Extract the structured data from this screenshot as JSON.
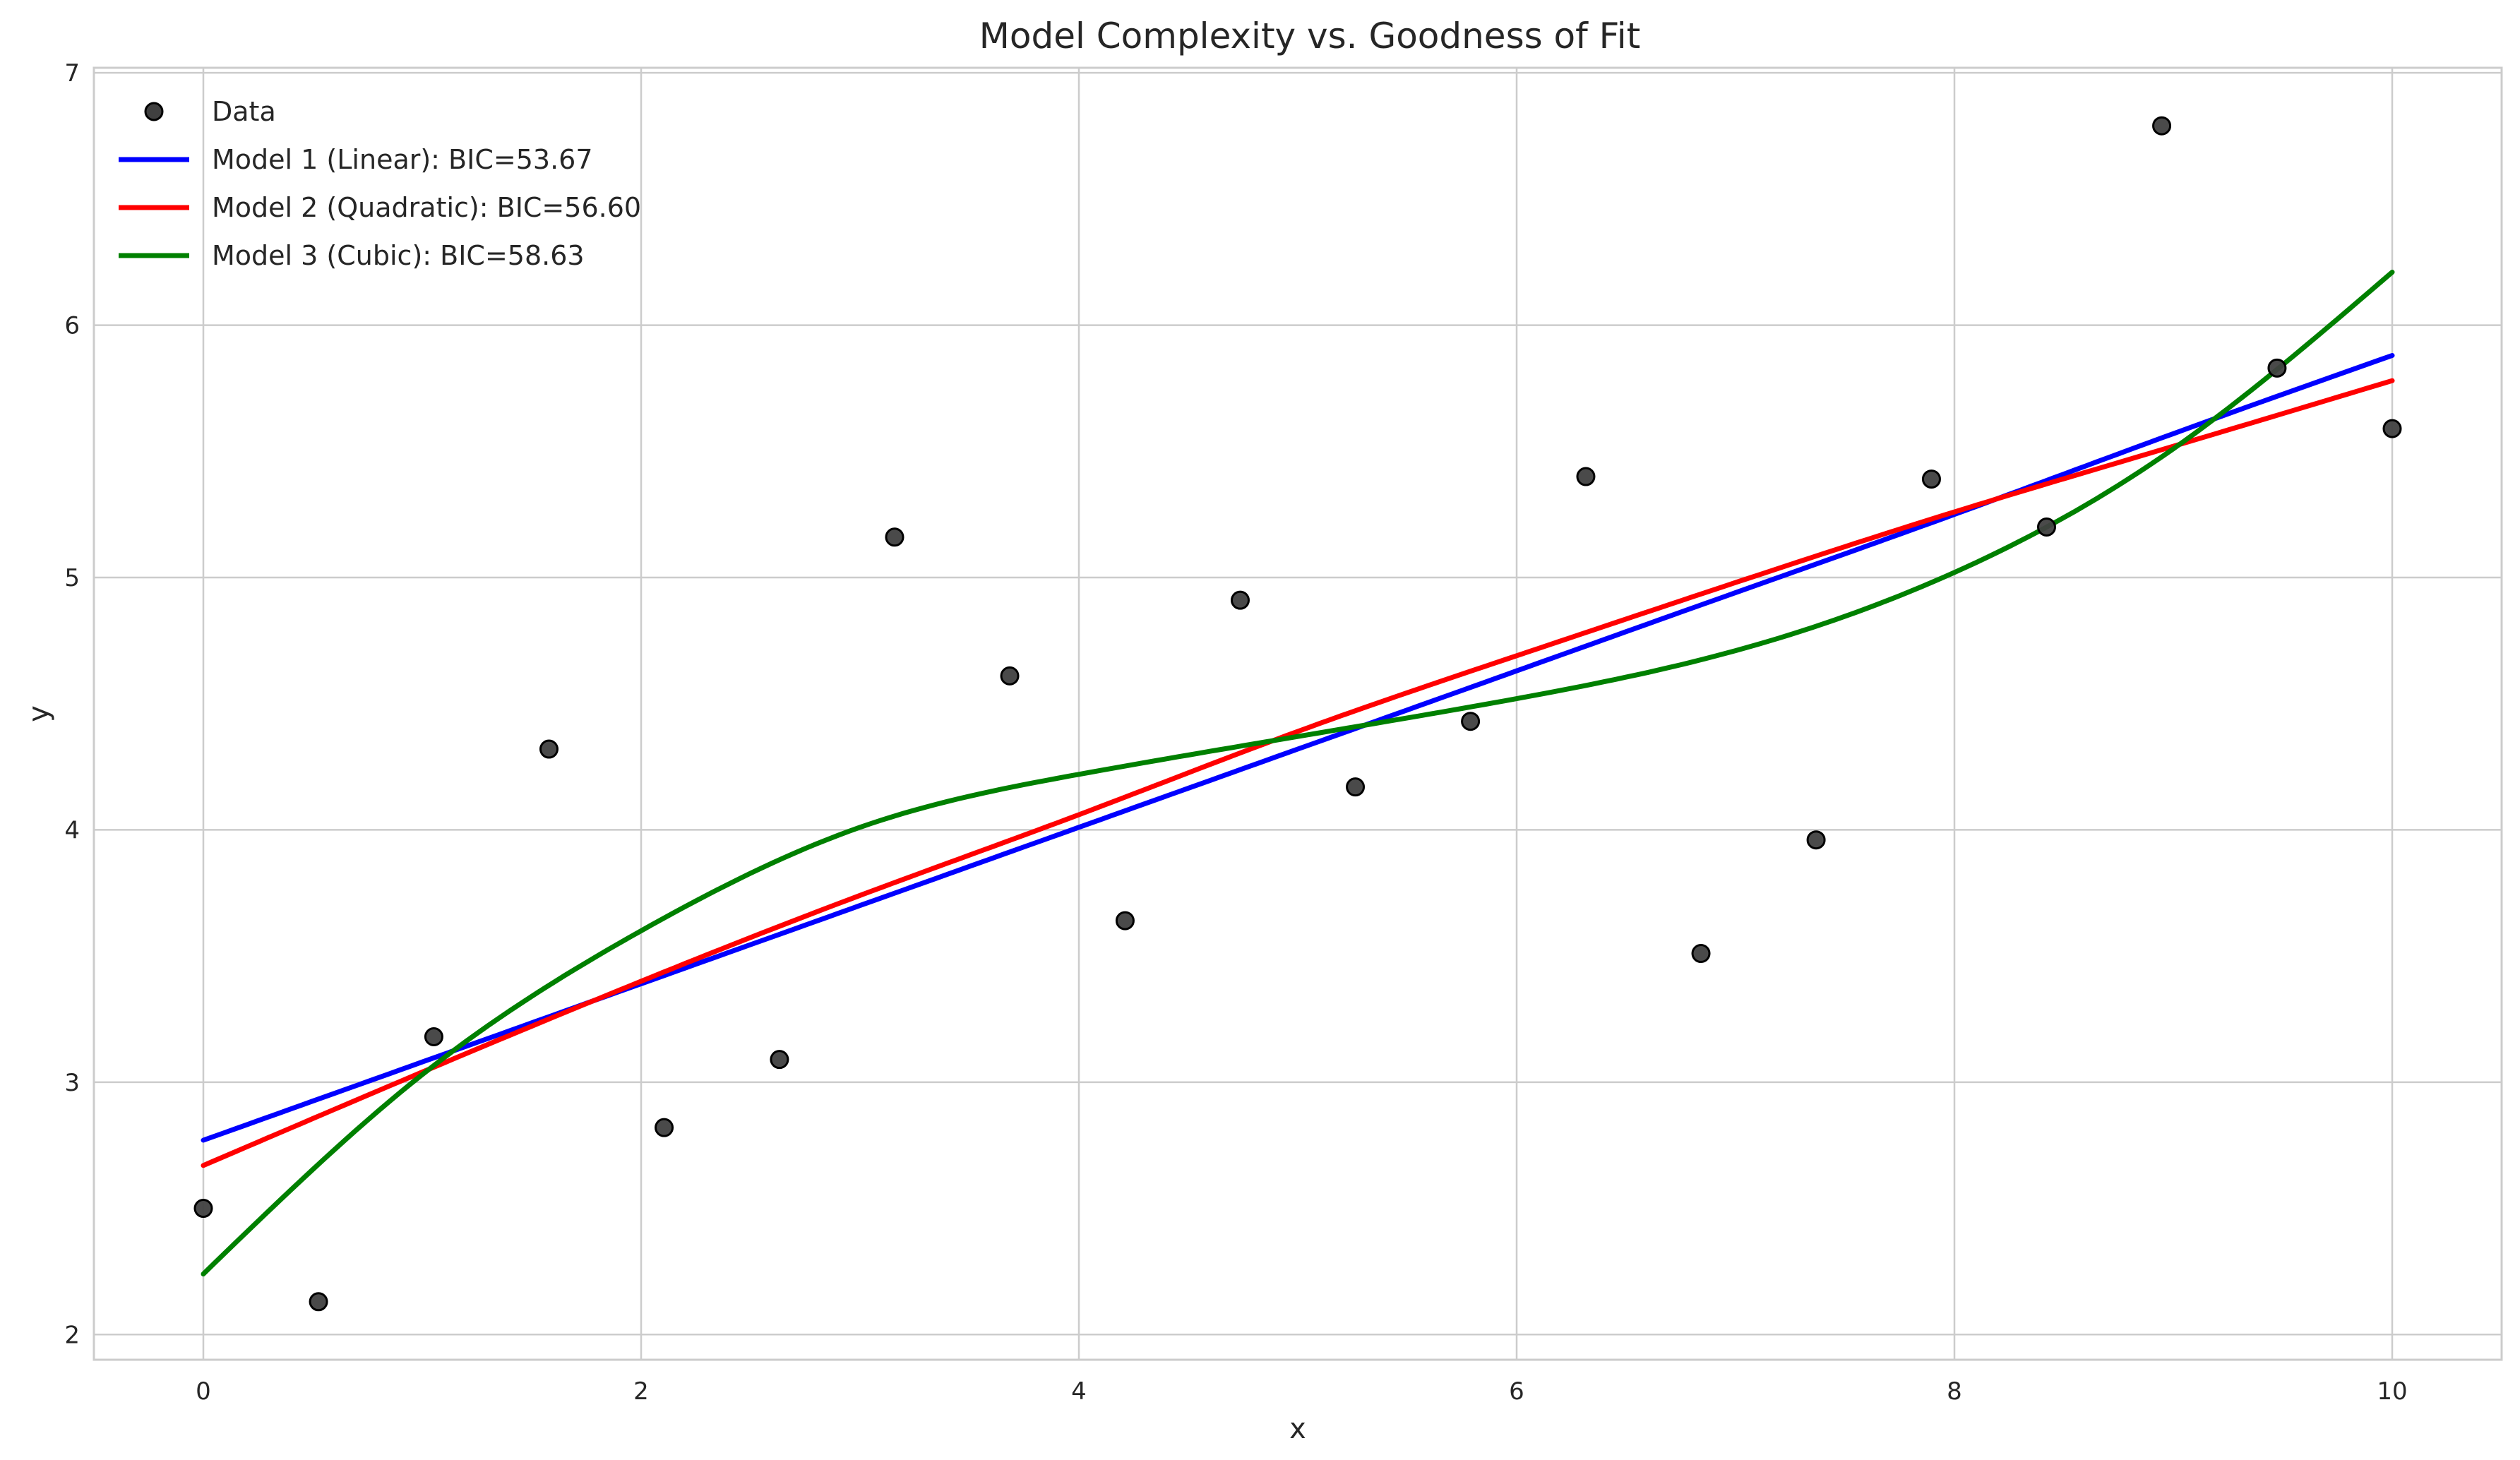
{
  "chart_data": {
    "type": "scatter",
    "title": "Model Complexity vs. Goodness of Fit",
    "xlabel": "x",
    "ylabel": "y",
    "xlim": [
      -0.5,
      10.5
    ],
    "ylim": [
      1.9,
      7.02
    ],
    "xticks": [
      0,
      2,
      4,
      6,
      8,
      10
    ],
    "yticks": [
      2,
      3,
      4,
      5,
      6,
      7
    ],
    "grid": true,
    "legend_position": "upper-left",
    "scatter": {
      "name": "Data",
      "color": "#404040",
      "x": [
        0,
        0.526,
        1.053,
        1.579,
        2.105,
        2.632,
        3.158,
        3.684,
        4.211,
        4.737,
        5.263,
        5.789,
        6.316,
        6.842,
        7.368,
        7.895,
        8.421,
        8.947,
        9.474,
        10
      ],
      "y": [
        2.5,
        2.13,
        3.18,
        4.32,
        2.82,
        3.09,
        5.16,
        4.61,
        3.64,
        4.91,
        4.17,
        4.43,
        5.4,
        3.51,
        3.96,
        5.39,
        5.2,
        6.79,
        5.83,
        5.59
      ]
    },
    "series": [
      {
        "name": "Model 1 (Linear): BIC=53.67",
        "color": "#0000ff",
        "x": [
          0,
          1,
          2,
          3,
          4,
          5,
          6,
          7,
          8,
          9,
          10
        ],
        "y": [
          2.77,
          3.08,
          3.39,
          3.7,
          4.01,
          4.32,
          4.63,
          4.94,
          5.25,
          5.57,
          5.88
        ]
      },
      {
        "name": "Model 2 (Quadratic): BIC=56.60",
        "color": "#ff0000",
        "x": [
          0,
          1,
          2,
          3,
          4,
          5,
          6,
          7,
          8,
          9,
          10
        ],
        "y": [
          2.67,
          3.04,
          3.4,
          3.74,
          4.06,
          4.39,
          4.69,
          4.98,
          5.26,
          5.52,
          5.78
        ]
      },
      {
        "name": "Model 3 (Cubic): BIC=58.63",
        "color": "#008000",
        "x": [
          0,
          1,
          2,
          3,
          4,
          5,
          6,
          7,
          8,
          9,
          10
        ],
        "y": [
          2.24,
          3.03,
          3.6,
          4.01,
          4.22,
          4.37,
          4.52,
          4.71,
          5.02,
          5.51,
          6.21
        ]
      }
    ]
  }
}
